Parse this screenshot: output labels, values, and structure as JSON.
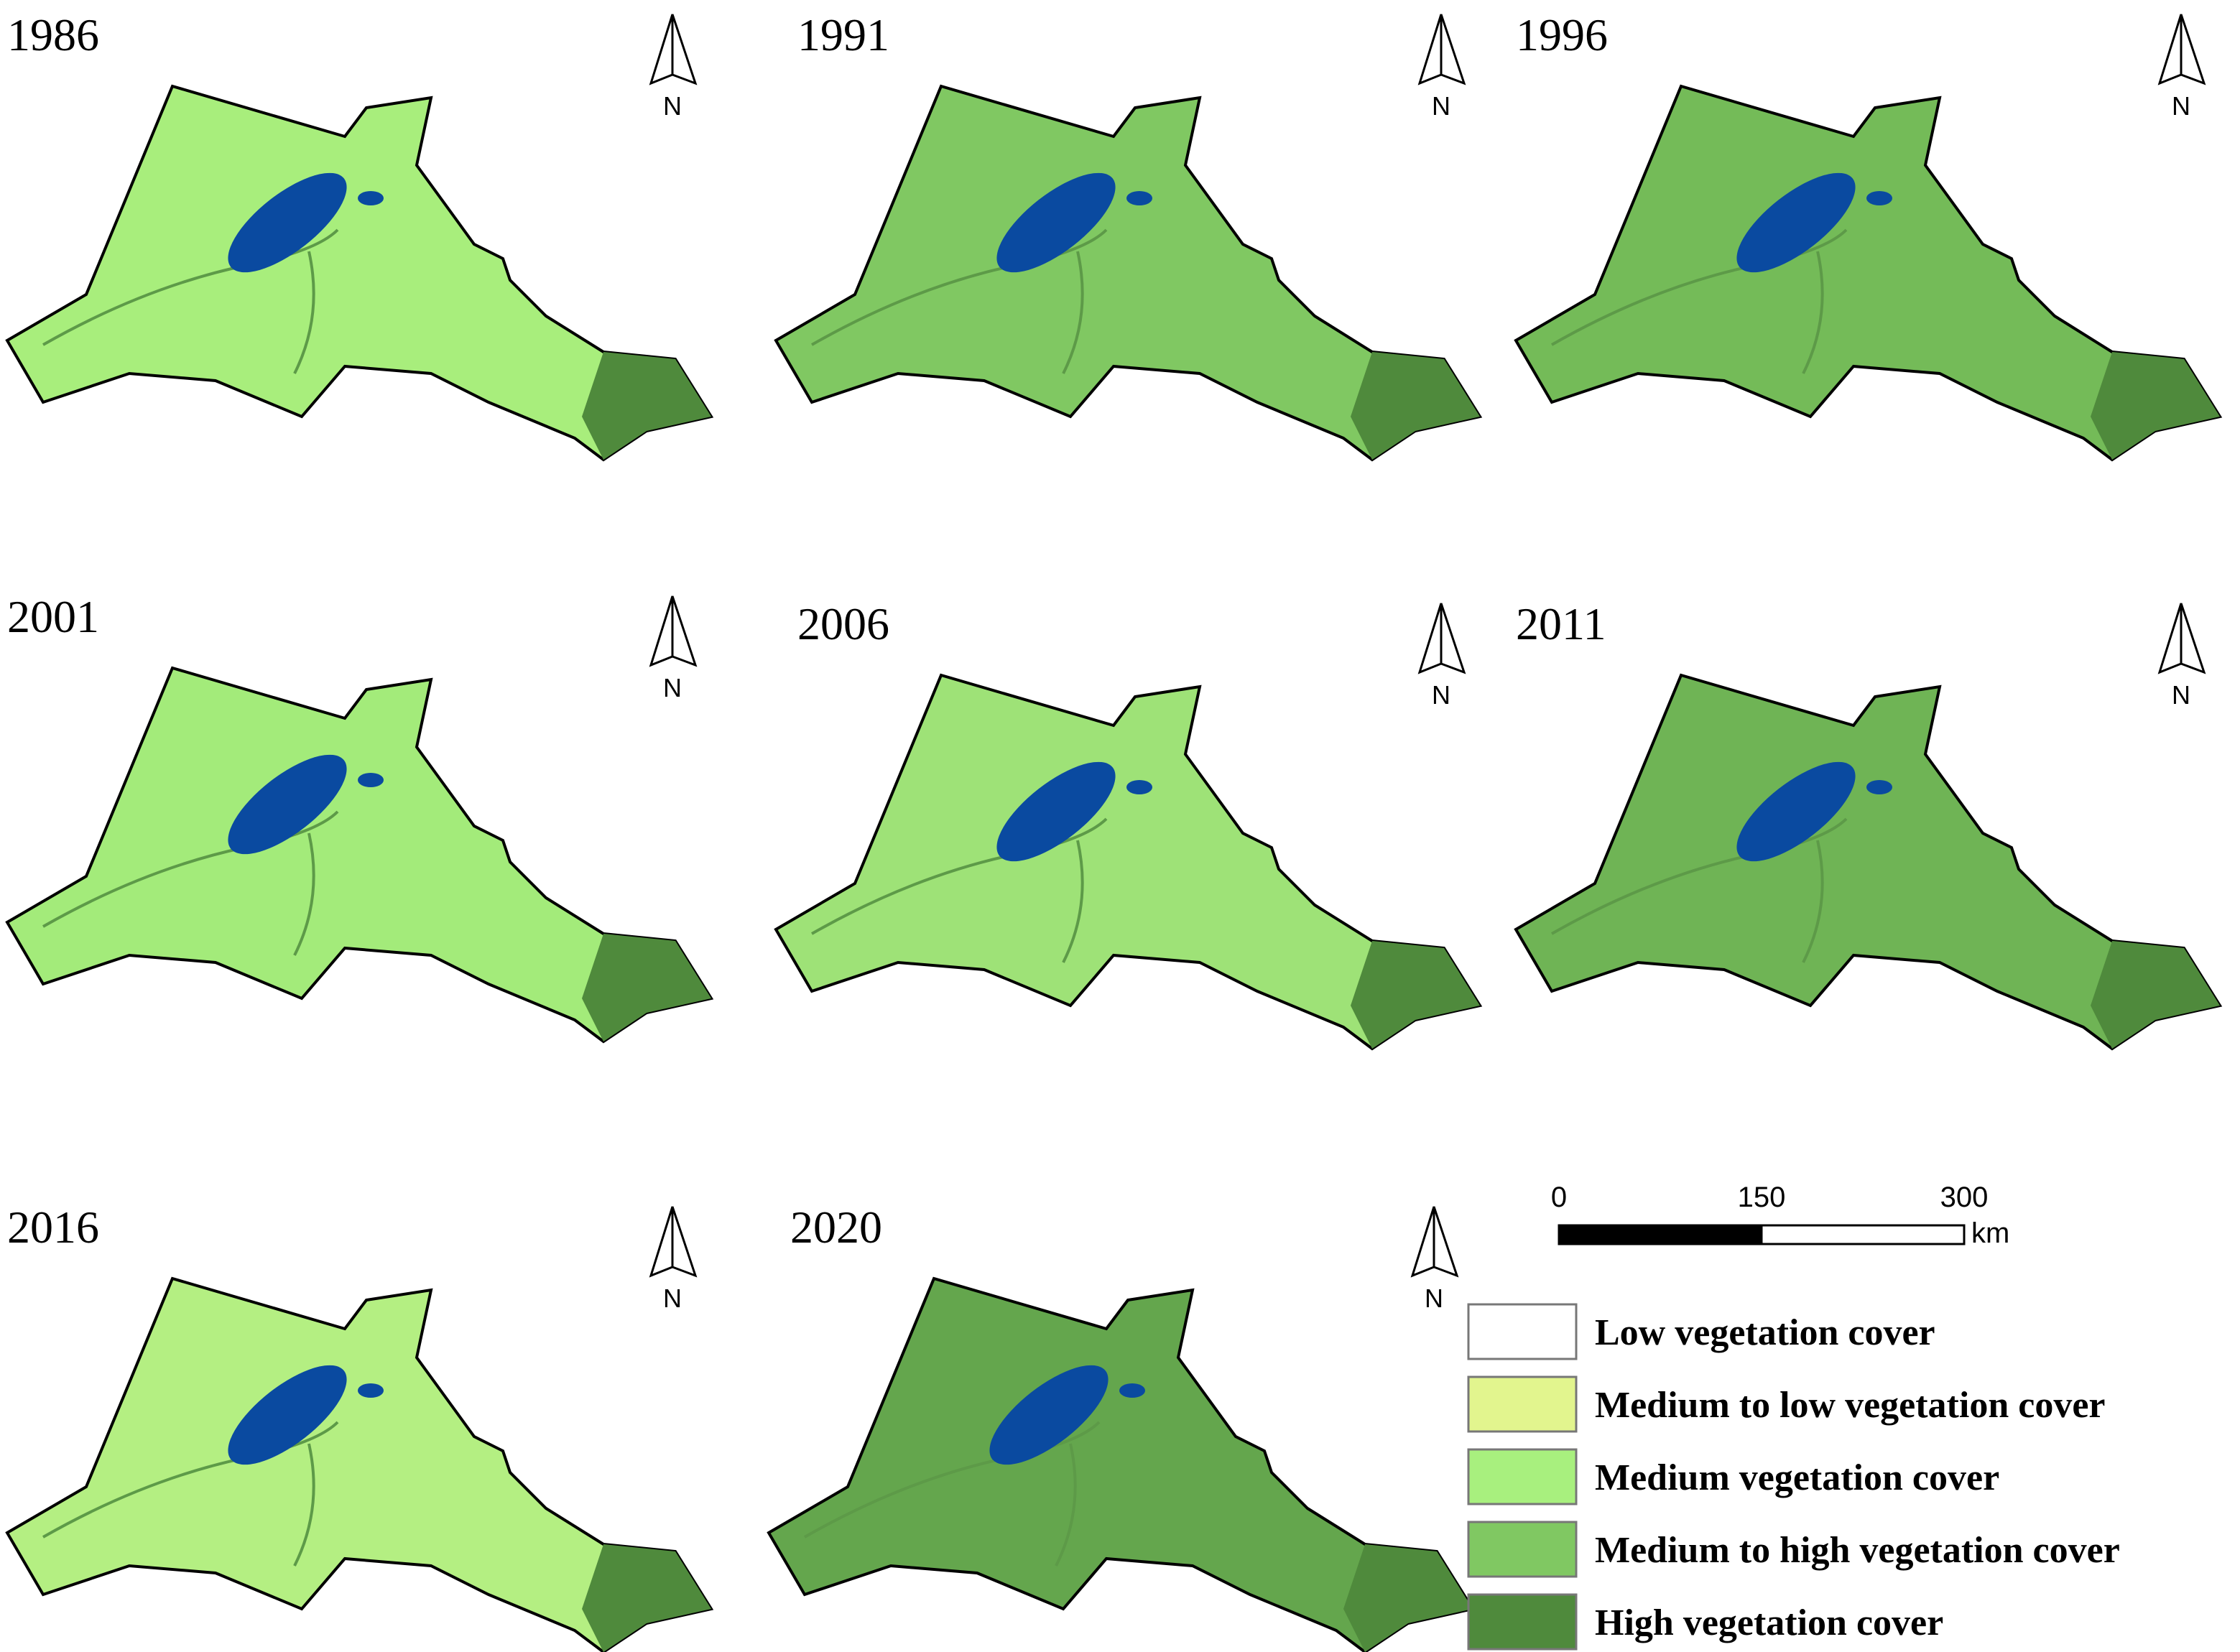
{
  "panels": [
    {
      "year": "1986",
      "fill": "#a8ee7c"
    },
    {
      "year": "1991",
      "fill": "#80c862"
    },
    {
      "year": "1996",
      "fill": "#74bb58"
    },
    {
      "year": "2001",
      "fill": "#a3eb7a"
    },
    {
      "year": "2006",
      "fill": "#9ee277"
    },
    {
      "year": "2011",
      "fill": "#6fb455"
    },
    {
      "year": "2016",
      "fill": "#b4ef82"
    },
    {
      "year": "2020",
      "fill": "#64a64d"
    }
  ],
  "north_label": "N",
  "scale_bar": {
    "ticks": [
      0,
      150,
      300
    ],
    "unit": "km"
  },
  "legend": [
    {
      "label": "Low vegetation cover",
      "color": "#ffffff"
    },
    {
      "label": "Medium to low vegetation cover",
      "color": "#e2f58e"
    },
    {
      "label": "Medium vegetation cover",
      "color": "#a8f07e"
    },
    {
      "label": "Medium to high vegetation cover",
      "color": "#80c862"
    },
    {
      "label": "High vegetation cover",
      "color": "#4f8a3c"
    }
  ]
}
